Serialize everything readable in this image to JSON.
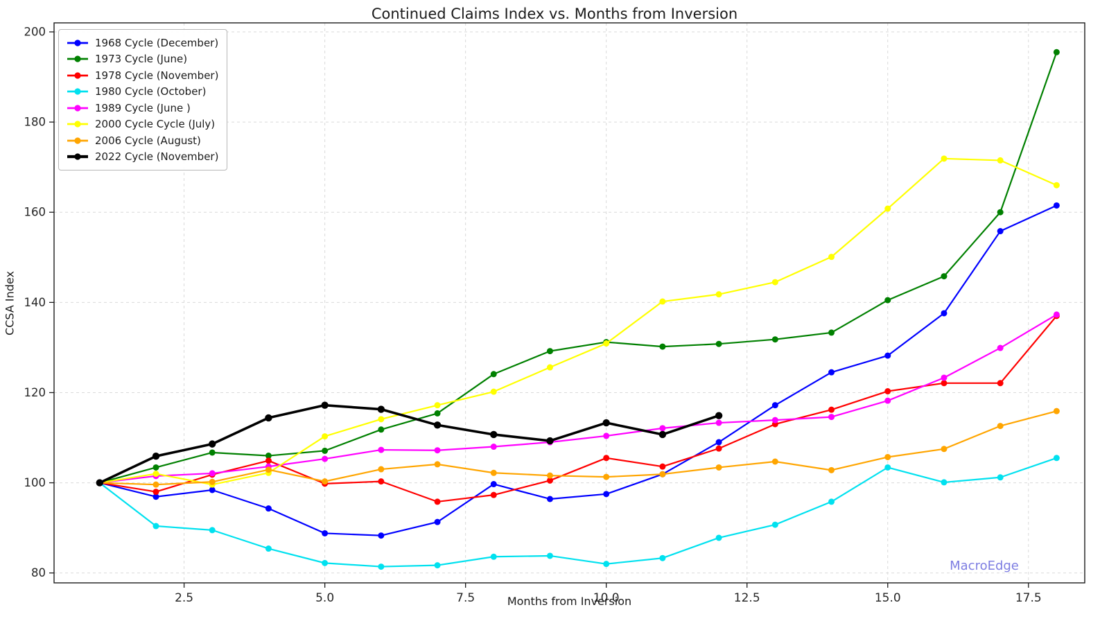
{
  "title": "Continued Claims Index vs. Months from Inversion",
  "watermark": "MacroEdge",
  "colors": {
    "grid": "#d9d9d9",
    "spine": "#1a1a1a",
    "tick_label": "#262626",
    "title_text": "#1a1a1a",
    "watermark_text": "#7d7de2"
  },
  "chart_data": {
    "type": "line",
    "title": "Continued Claims Index vs. Months from Inversion",
    "xlabel": "Months from Inversion",
    "ylabel": "CCSA Index",
    "grid": true,
    "legend_position": "upper-left",
    "xlim": [
      0.19,
      18.5
    ],
    "ylim": [
      77.8,
      202.0
    ],
    "x_tick_labels": [
      "2.5",
      "5.0",
      "7.5",
      "10.0",
      "12.5",
      "15.0",
      "17.5"
    ],
    "x_ticks": [
      2.5,
      5.0,
      7.5,
      10.0,
      12.5,
      15.0,
      17.5
    ],
    "y_ticks": [
      80,
      100,
      120,
      140,
      160,
      180,
      200
    ],
    "x": [
      1,
      2,
      3,
      4,
      5,
      6,
      7,
      8,
      9,
      10,
      11,
      12,
      13,
      14,
      15,
      16,
      17,
      18
    ],
    "series": [
      {
        "name": "1968 Cycle (December)",
        "color": "#0000ff",
        "linewidth": 2.2,
        "markersize": 4.5,
        "values": [
          100,
          96.9,
          98.4,
          94.3,
          88.8,
          88.3,
          91.3,
          99.7,
          96.4,
          97.5,
          101.9,
          109.0,
          117.2,
          124.5,
          128.2,
          137.6,
          155.8,
          161.5
        ]
      },
      {
        "name": "1973 Cycle (June)",
        "color": "#008000",
        "linewidth": 2.2,
        "markersize": 4.5,
        "values": [
          100,
          103.4,
          106.7,
          106.0,
          107.1,
          111.8,
          115.4,
          124.1,
          129.2,
          131.2,
          130.2,
          130.8,
          131.8,
          133.3,
          140.5,
          145.8,
          160.0,
          195.5
        ]
      },
      {
        "name": "1978 Cycle (November)",
        "color": "#ff0000",
        "linewidth": 2.2,
        "markersize": 4.5,
        "values": [
          100,
          98.0,
          101.8,
          104.9,
          99.8,
          100.3,
          95.8,
          97.3,
          100.5,
          105.5,
          103.6,
          107.6,
          113.0,
          116.2,
          120.3,
          122.1,
          122.1,
          137.0
        ]
      },
      {
        "name": "1980 Cycle (October)",
        "color": "#00e1ef",
        "linewidth": 2.2,
        "markersize": 4.5,
        "values": [
          100,
          90.4,
          89.5,
          85.4,
          82.2,
          81.4,
          81.7,
          83.6,
          83.8,
          82.0,
          83.3,
          87.8,
          90.7,
          95.8,
          103.4,
          100.1,
          101.2,
          105.5
        ]
      },
      {
        "name": "1989 Cycle (June )",
        "color": "#ff00ff",
        "linewidth": 2.2,
        "markersize": 4.5,
        "values": [
          100,
          101.5,
          102.1,
          103.6,
          105.3,
          107.3,
          107.2,
          108.0,
          109.0,
          110.4,
          112.1,
          113.3,
          113.9,
          114.6,
          118.2,
          123.3,
          129.9,
          137.3
        ]
      },
      {
        "name": "2000 Cycle Cycle (July)",
        "color": "#ffff00",
        "linewidth": 2.2,
        "markersize": 4.5,
        "values": [
          100,
          102.0,
          99.6,
          102.2,
          110.3,
          114.1,
          117.2,
          120.2,
          125.6,
          130.9,
          140.2,
          141.8,
          144.5,
          150.1,
          160.8,
          171.9,
          171.5,
          166.0
        ]
      },
      {
        "name": "2006 Cycle (August)",
        "color": "#ffa500",
        "linewidth": 2.2,
        "markersize": 4.5,
        "values": [
          100,
          99.6,
          100.2,
          102.9,
          100.3,
          103.0,
          104.1,
          102.2,
          101.6,
          101.3,
          101.9,
          103.4,
          104.7,
          102.8,
          105.7,
          107.5,
          112.6,
          115.9
        ]
      },
      {
        "name": "2022 Cycle (November)",
        "color": "#000000",
        "linewidth": 3.6,
        "markersize": 5.2,
        "values": [
          100,
          105.9,
          108.6,
          114.4,
          117.2,
          116.3,
          112.8,
          110.7,
          109.3,
          113.3,
          110.7,
          114.9
        ]
      }
    ]
  }
}
